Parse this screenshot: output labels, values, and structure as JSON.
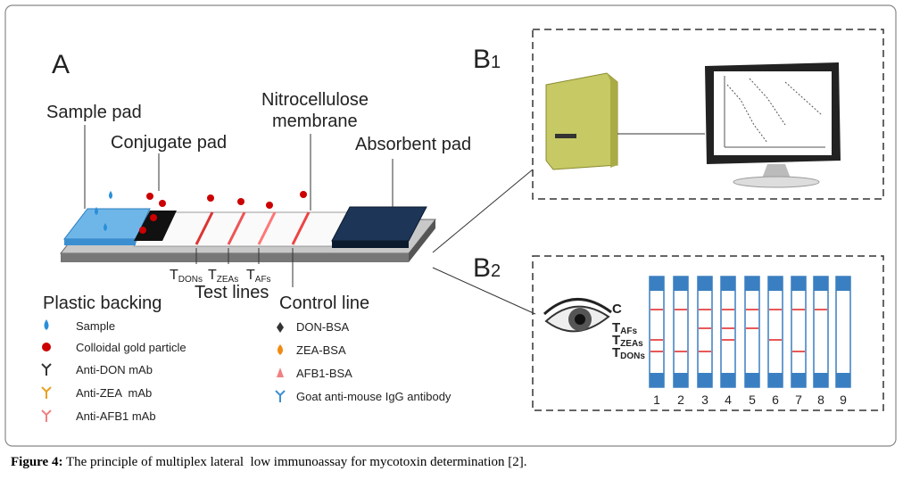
{
  "panel_a": {
    "label": "A",
    "sample_pad": "Sample pad",
    "conjugate_pad": "Conjugate pad",
    "membrane": [
      "Nitrocellulose",
      "membrane"
    ],
    "absorbent_pad": "Absorbent pad",
    "plastic_backing": "Plastic backing",
    "test_lines": "Test lines",
    "control_line": "Control line",
    "test_line_labels": [
      {
        "main": "T",
        "sub": "DONs"
      },
      {
        "main": "T",
        "sub": "ZEAs"
      },
      {
        "main": "T",
        "sub": "AFs"
      }
    ],
    "legend_left": [
      "Sample",
      "Colloidal gold particle",
      "Anti-DON mAb",
      "Anti-ZEA  mAb",
      "Anti-AFB1 mAb"
    ],
    "legend_right": [
      "DON-BSA",
      "ZEA-BSA",
      "AFB1-BSA",
      "Goat anti-mouse IgG antibody"
    ]
  },
  "panel_b1": {
    "main": "B",
    "sub": "1"
  },
  "panel_b2": {
    "main": "B",
    "sub": "2",
    "line_labels": [
      {
        "main": "C",
        "sub": ""
      },
      {
        "main": "T",
        "sub": "AFs"
      },
      {
        "main": "T",
        "sub": "ZEAs"
      },
      {
        "main": "T",
        "sub": "DONs"
      }
    ],
    "strip_numbers": [
      "1",
      "2",
      "3",
      "4",
      "5",
      "6",
      "7",
      "8",
      "9"
    ]
  },
  "caption": {
    "label": "Figure 4:",
    "text": " The principle of multiplex lateral  low immunoassay for mycotoxin determination [2]."
  }
}
